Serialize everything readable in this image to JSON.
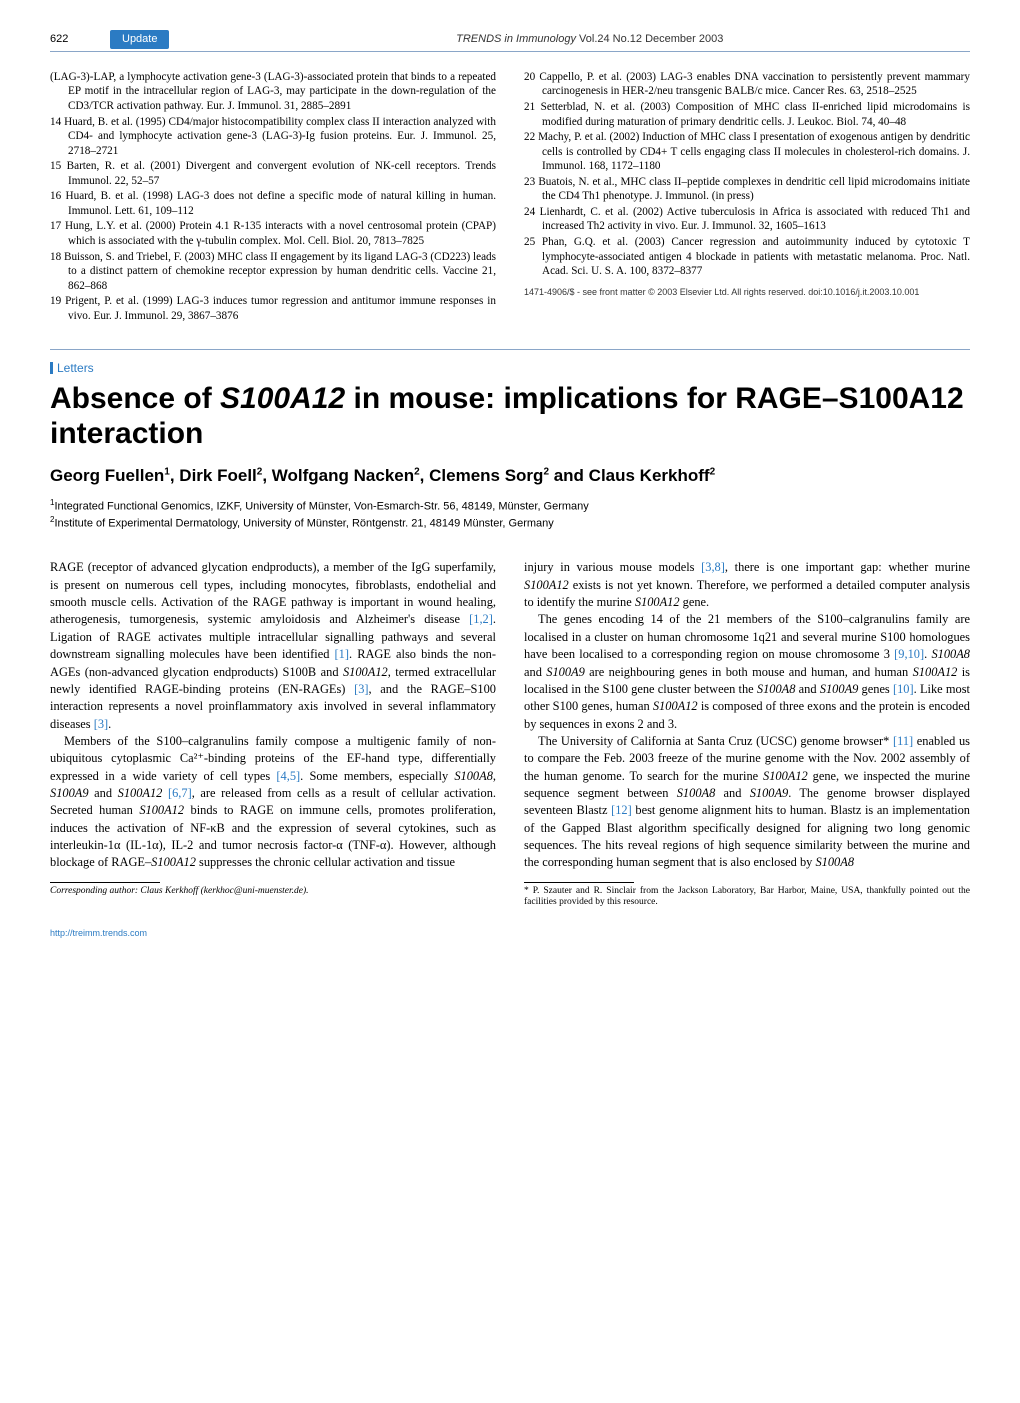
{
  "colors": {
    "accent": "#2b7bc3",
    "rule": "#8aa6c8",
    "text": "#000000",
    "bg": "#ffffff"
  },
  "header": {
    "page_number": "622",
    "section_label": "Update",
    "journal_italic": "TRENDS in Immunology",
    "journal_rest": "  Vol.24 No.12  December 2003"
  },
  "refs_top": [
    "(LAG-3)-LAP, a lymphocyte activation gene-3 (LAG-3)-associated protein that binds to a repeated EP motif in the intracellular region of LAG-3, may participate in the down-regulation of the CD3/TCR activation pathway. Eur. J. Immunol. 31, 2885–2891",
    "14 Huard, B. et al. (1995) CD4/major histocompatibility complex class II interaction analyzed with CD4- and lymphocyte activation gene-3 (LAG-3)-Ig fusion proteins. Eur. J. Immunol. 25, 2718–2721",
    "15 Barten, R. et al. (2001) Divergent and convergent evolution of NK-cell receptors. Trends Immunol. 22, 52–57",
    "16 Huard, B. et al. (1998) LAG-3 does not define a specific mode of natural killing in human. Immunol. Lett. 61, 109–112",
    "17 Hung, L.Y. et al. (2000) Protein 4.1 R-135 interacts with a novel centrosomal protein (CPAP) which is associated with the γ-tubulin complex. Mol. Cell. Biol. 20, 7813–7825",
    "18 Buisson, S. and Triebel, F. (2003) MHC class II engagement by its ligand LAG-3 (CD223) leads to a distinct pattern of chemokine receptor expression by human dendritic cells. Vaccine 21, 862–868",
    "19 Prigent, P. et al. (1999) LAG-3 induces tumor regression and antitumor immune responses in vivo. Eur. J. Immunol. 29, 3867–3876",
    "20 Cappello, P. et al. (2003) LAG-3 enables DNA vaccination to persistently prevent mammary carcinogenesis in HER-2/neu transgenic BALB/c mice. Cancer Res. 63, 2518–2525",
    "21 Setterblad, N. et al. (2003) Composition of MHC class II-enriched lipid microdomains is modified during maturation of primary dendritic cells. J. Leukoc. Biol. 74, 40–48",
    "22 Machy, P. et al. (2002) Induction of MHC class I presentation of exogenous antigen by dendritic cells is controlled by CD4+ T cells engaging class II molecules in cholesterol-rich domains. J. Immunol. 168, 1172–1180",
    "23 Buatois, N. et al., MHC class II–peptide complexes in dendritic cell lipid microdomains initiate the CD4 Th1 phenotype. J. Immunol. (in press)",
    "24 Lienhardt, C. et al. (2002) Active tuberculosis in Africa is associated with reduced Th1 and increased Th2 activity in vivo. Eur. J. Immunol. 32, 1605–1613",
    "25 Phan, G.Q. et al. (2003) Cancer regression and autoimmunity induced by cytotoxic T lymphocyte-associated antigen 4 blockade in patients with metastatic melanoma. Proc. Natl. Acad. Sci. U. S. A. 100, 8372–8377"
  ],
  "top_notice": "1471-4906/$ - see front matter © 2003 Elsevier Ltd. All rights reserved. doi:10.1016/j.it.2003.10.001",
  "article": {
    "section_label": "Letters",
    "title_pre": "Absence of ",
    "title_em": "S100A12",
    "title_post": " in mouse: implications for RAGE–S100A12 interaction",
    "authors_html": "Georg Fuellen<sup>1</sup>, Dirk Foell<sup>2</sup>, Wolfgang Nacken<sup>2</sup>, Clemens Sorg<sup>2</sup> and Claus Kerkhoff<sup>2</sup>",
    "affil1": "Integrated Functional Genomics, IZKF, University of Münster, Von-Esmarch-Str. 56, 48149, Münster, Germany",
    "affil2": "Institute of Experimental Dermatology, University of Münster, Röntgenstr. 21, 48149 Münster, Germany"
  },
  "body": {
    "p1": "RAGE (receptor of advanced glycation endproducts), a member of the IgG superfamily, is present on numerous cell types, including monocytes, fibroblasts, endothelial and smooth muscle cells. Activation of the RAGE pathway is important in wound healing, atherogenesis, tumorgenesis, systemic amyloidosis and Alzheimer's disease [1,2]. Ligation of RAGE activates multiple intracellular signalling pathways and several downstream signalling molecules have been identified [1]. RAGE also binds the non-AGEs (non-advanced glycation endproducts) S100B and S100A12, termed extracellular newly identified RAGE-binding proteins (EN-RAGEs) [3], and the RAGE–S100 interaction represents a novel proinflammatory axis involved in several inflammatory diseases [3].",
    "p2": "Members of the S100–calgranulins family compose a multigenic family of non-ubiquitous cytoplasmic Ca²⁺-binding proteins of the EF-hand type, differentially expressed in a wide variety of cell types [4,5]. Some members, especially S100A8, S100A9 and S100A12 [6,7], are released from cells as a result of cellular activation. Secreted human S100A12 binds to RAGE on immune cells, promotes proliferation, induces the activation of NF-κB and the expression of several cytokines, such as interleukin-1α (IL-1α), IL-2 and tumor necrosis factor-α (TNF-α). However, although blockage of RAGE–S100A12 suppresses the chronic cellular activation and tissue",
    "p3": "injury in various mouse models [3,8], there is one important gap: whether murine S100A12 exists is not yet known. Therefore, we performed a detailed computer analysis to identify the murine S100A12 gene.",
    "p4": "The genes encoding 14 of the 21 members of the S100–calgranulins family are localised in a cluster on human chromosome 1q21 and several murine S100 homologues have been localised to a corresponding region on mouse chromosome 3 [9,10]. S100A8 and S100A9 are neighbouring genes in both mouse and human, and human S100A12 is localised in the S100 gene cluster between the S100A8 and S100A9 genes [10]. Like most other S100 genes, human S100A12 is composed of three exons and the protein is encoded by sequences in exons 2 and 3.",
    "p5": "The University of California at Santa Cruz (UCSC) genome browser* [11] enabled us to compare the Feb. 2003 freeze of the murine genome with the Nov. 2002 assembly of the human genome. To search for the murine S100A12 gene, we inspected the murine sequence segment between S100A8 and S100A9. The genome browser displayed seventeen Blastz [12] best genome alignment hits to human. Blastz is an implementation of the Gapped Blast algorithm specifically designed for aligning two long genomic sequences. The hits reveal regions of high sequence similarity between the murine and the corresponding human segment that is also enclosed by S100A8"
  },
  "footnotes": {
    "left": "Corresponding author: Claus Kerkhoff (kerkhoc@uni-muenster.de).",
    "right": "* P. Szauter and R. Sinclair from the Jackson Laboratory, Bar Harbor, Maine, USA, thankfully pointed out the facilities provided by this resource."
  },
  "footer_link": "http://treimm.trends.com"
}
